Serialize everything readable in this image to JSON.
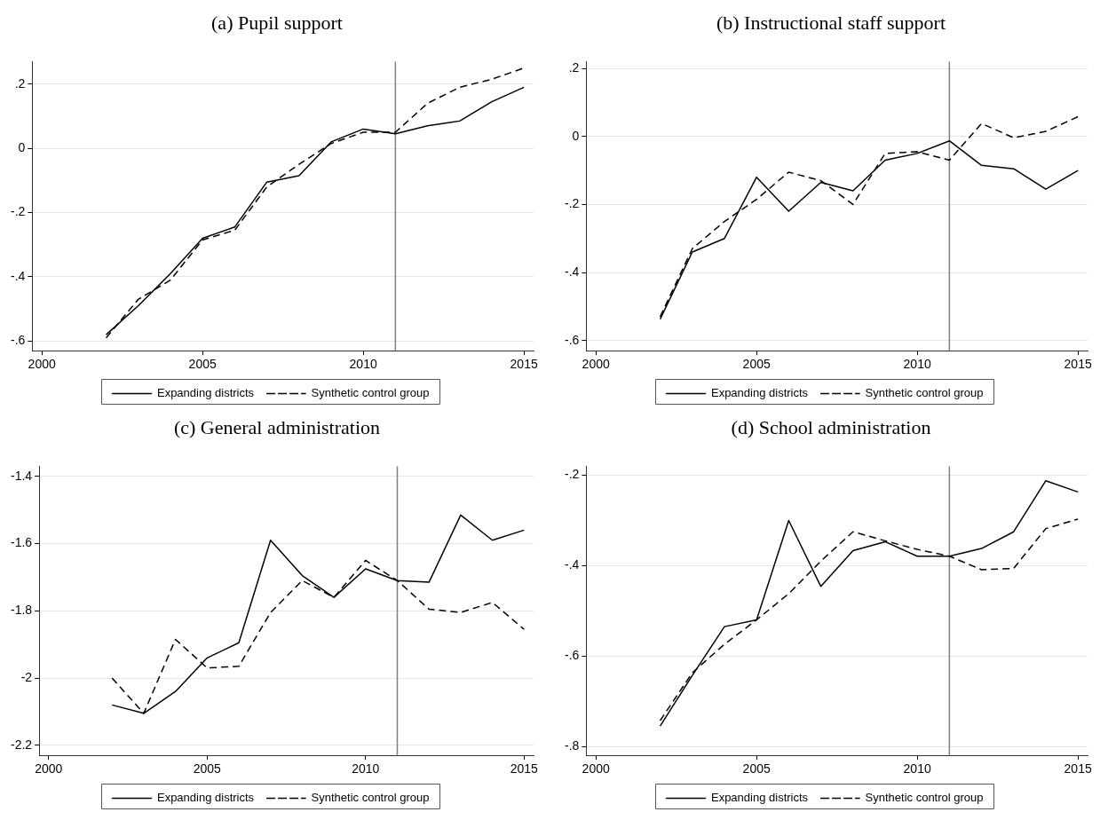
{
  "chart_data": [
    {
      "type": "line",
      "title": "(a) Pupil support",
      "x": [
        2002,
        2003,
        2004,
        2005,
        2006,
        2007,
        2008,
        2009,
        2010,
        2011,
        2012,
        2013,
        2014,
        2015
      ],
      "series": [
        {
          "name": "Expanding districts",
          "color": "#000000",
          "line_style": "solid",
          "values": [
            -0.58,
            -0.49,
            -0.39,
            -0.28,
            -0.245,
            -0.105,
            -0.085,
            0.02,
            0.06,
            0.045,
            0.07,
            0.085,
            0.145,
            0.19
          ]
        },
        {
          "name": "Synthetic control group",
          "color": "#000000",
          "line_style": "dashed",
          "values": [
            -0.59,
            -0.47,
            -0.41,
            -0.285,
            -0.255,
            -0.12,
            -0.05,
            0.015,
            0.05,
            0.05,
            0.14,
            0.19,
            0.215,
            0.25
          ]
        }
      ],
      "xlim": [
        1999.7,
        2015.3
      ],
      "xticks": [
        2000,
        2005,
        2010,
        2015
      ],
      "ylim": [
        -0.63,
        0.27
      ],
      "yticks": [
        {
          "value": -0.6,
          "label": "-.6"
        },
        {
          "value": -0.4,
          "label": "-.4"
        },
        {
          "value": -0.2,
          "label": "-.2"
        },
        0,
        {
          "value": 0.2,
          "label": ".2"
        }
      ],
      "grid": "y",
      "legend": "bottom",
      "ref_lines": [
        {
          "axis": "x",
          "value": 2011,
          "color": "#808080"
        }
      ]
    },
    {
      "type": "line",
      "title": "(b) Instructional staff support",
      "x": [
        2002,
        2003,
        2004,
        2005,
        2006,
        2007,
        2008,
        2009,
        2010,
        2011,
        2012,
        2013,
        2014,
        2015
      ],
      "series": [
        {
          "name": "Expanding districts",
          "color": "#000000",
          "line_style": "solid",
          "values": [
            -0.537,
            -0.34,
            -0.3,
            -0.12,
            -0.22,
            -0.135,
            -0.16,
            -0.07,
            -0.05,
            -0.013,
            -0.085,
            -0.095,
            -0.155,
            -0.1
          ]
        },
        {
          "name": "Synthetic control group",
          "color": "#000000",
          "line_style": "dashed",
          "values": [
            -0.53,
            -0.33,
            -0.25,
            -0.185,
            -0.105,
            -0.13,
            -0.2,
            -0.05,
            -0.045,
            -0.07,
            0.038,
            -0.004,
            0.015,
            0.058
          ]
        }
      ],
      "xlim": [
        1999.7,
        2015.3
      ],
      "xticks": [
        2000,
        2005,
        2010,
        2015
      ],
      "ylim": [
        -0.63,
        0.22
      ],
      "yticks": [
        {
          "value": -0.6,
          "label": "-.6"
        },
        {
          "value": -0.4,
          "label": "-.4"
        },
        {
          "value": -0.2,
          "label": "-.2"
        },
        0,
        {
          "value": 0.2,
          "label": ".2"
        }
      ],
      "grid": "y",
      "legend": "bottom",
      "ref_lines": [
        {
          "axis": "x",
          "value": 2011,
          "color": "#808080"
        }
      ]
    },
    {
      "type": "line",
      "title": "(c) General administration",
      "x": [
        2002,
        2003,
        2004,
        2005,
        2006,
        2007,
        2008,
        2009,
        2010,
        2011,
        2012,
        2013,
        2014,
        2015
      ],
      "series": [
        {
          "name": "Expanding districts",
          "color": "#000000",
          "line_style": "solid",
          "values": [
            -2.08,
            -2.105,
            -2.04,
            -1.94,
            -1.895,
            -1.59,
            -1.695,
            -1.76,
            -1.675,
            -1.71,
            -1.715,
            -1.515,
            -1.59,
            -1.56
          ]
        },
        {
          "name": "Synthetic control group",
          "color": "#000000",
          "line_style": "dashed",
          "values": [
            -2.0,
            -2.105,
            -1.885,
            -1.97,
            -1.965,
            -1.805,
            -1.71,
            -1.76,
            -1.65,
            -1.71,
            -1.795,
            -1.805,
            -1.775,
            -1.855
          ]
        }
      ],
      "xlim": [
        1999.7,
        2015.3
      ],
      "xticks": [
        2000,
        2005,
        2010,
        2015
      ],
      "ylim": [
        -2.23,
        -1.37
      ],
      "yticks": [
        -2.2,
        -2,
        -1.8,
        -1.6,
        -1.4
      ],
      "grid": "y",
      "legend": "bottom",
      "ref_lines": [
        {
          "axis": "x",
          "value": 2011,
          "color": "#808080"
        }
      ]
    },
    {
      "type": "line",
      "title": "(d) School administration",
      "x": [
        2002,
        2003,
        2004,
        2005,
        2006,
        2007,
        2008,
        2009,
        2010,
        2011,
        2012,
        2013,
        2014,
        2015
      ],
      "series": [
        {
          "name": "Expanding districts",
          "color": "#000000",
          "line_style": "solid",
          "values": [
            -0.755,
            -0.643,
            -0.535,
            -0.52,
            -0.3,
            -0.446,
            -0.367,
            -0.347,
            -0.379,
            -0.379,
            -0.362,
            -0.325,
            -0.212,
            -0.237
          ]
        },
        {
          "name": "Synthetic control group",
          "color": "#000000",
          "line_style": "dashed",
          "values": [
            -0.743,
            -0.637,
            -0.574,
            -0.52,
            -0.462,
            -0.39,
            -0.325,
            -0.345,
            -0.364,
            -0.379,
            -0.409,
            -0.406,
            -0.318,
            -0.297
          ]
        }
      ],
      "xlim": [
        1999.7,
        2015.3
      ],
      "xticks": [
        2000,
        2005,
        2010,
        2015
      ],
      "ylim": [
        -0.82,
        -0.18
      ],
      "yticks": [
        {
          "value": -0.8,
          "label": "-.8"
        },
        {
          "value": -0.6,
          "label": "-.6"
        },
        {
          "value": -0.4,
          "label": "-.4"
        },
        {
          "value": -0.2,
          "label": "-.2"
        }
      ],
      "grid": "y",
      "legend": "bottom",
      "ref_lines": [
        {
          "axis": "x",
          "value": 2011,
          "color": "#808080"
        }
      ]
    }
  ]
}
